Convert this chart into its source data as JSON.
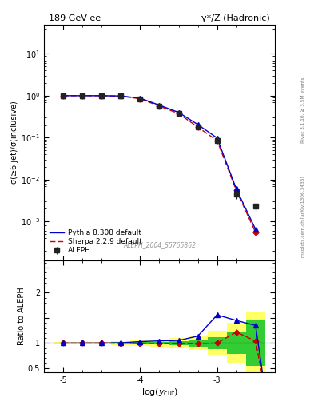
{
  "title_left": "189 GeV ee",
  "title_right": "γ*/Z (Hadronic)",
  "ylabel_main": "σ(≥6 jet)/σ(inclusive)",
  "ylabel_ratio": "Ratio to ALEPH",
  "xlabel": "log(y_{cut})",
  "watermark": "ALEPH_2004_S5765862",
  "right_label_top": "Rivet 3.1.10, ≥ 3.5M events",
  "right_label_bot": "mcplots.cern.ch [arXiv:1306.3436]",
  "xmin": -5.25,
  "xmax": -2.25,
  "aleph_x": [
    -5.0,
    -4.75,
    -4.5,
    -4.25,
    -4.0,
    -3.75,
    -3.5,
    -3.25,
    -3.0,
    -2.75,
    -2.5
  ],
  "aleph_y": [
    1.0,
    1.0,
    1.0,
    0.98,
    0.85,
    0.57,
    0.38,
    0.18,
    0.085,
    0.0045,
    0.0023
  ],
  "aleph_yerr_lo": [
    0.01,
    0.01,
    0.01,
    0.02,
    0.03,
    0.02,
    0.015,
    0.012,
    0.008,
    0.001,
    0.0005
  ],
  "aleph_yerr_hi": [
    0.01,
    0.01,
    0.01,
    0.02,
    0.03,
    0.02,
    0.015,
    0.012,
    0.008,
    0.001,
    0.0005
  ],
  "pythia_x": [
    -5.0,
    -4.75,
    -4.5,
    -4.25,
    -4.0,
    -3.75,
    -3.5,
    -3.25,
    -3.0,
    -2.75,
    -2.5
  ],
  "pythia_y": [
    1.0,
    1.0,
    1.0,
    0.985,
    0.875,
    0.595,
    0.4,
    0.205,
    0.098,
    0.006,
    0.00065
  ],
  "sherpa_x": [
    -5.0,
    -4.75,
    -4.5,
    -4.25,
    -4.0,
    -3.75,
    -3.5,
    -3.25,
    -3.0,
    -2.75,
    -2.5
  ],
  "sherpa_y": [
    1.0,
    1.0,
    1.0,
    0.975,
    0.845,
    0.565,
    0.375,
    0.178,
    0.085,
    0.0055,
    0.00055
  ],
  "ratio_pythia_x": [
    -5.0,
    -4.75,
    -4.5,
    -4.25,
    -4.0,
    -3.75,
    -3.5,
    -3.25,
    -3.0,
    -2.75,
    -2.5,
    -2.4
  ],
  "ratio_pythia_y": [
    1.0,
    1.0,
    1.0,
    1.005,
    1.03,
    1.044,
    1.053,
    1.139,
    1.56,
    1.45,
    1.35,
    0.3
  ],
  "ratio_sherpa_x": [
    -5.0,
    -4.75,
    -4.5,
    -4.25,
    -4.0,
    -3.75,
    -3.5,
    -3.25,
    -3.0,
    -2.75,
    -2.5,
    -2.4
  ],
  "ratio_sherpa_y": [
    1.0,
    1.0,
    1.0,
    0.995,
    0.994,
    0.991,
    0.987,
    0.989,
    1.0,
    1.22,
    1.04,
    0.25
  ],
  "green_x_edges": [
    -5.125,
    -4.875,
    -4.625,
    -4.375,
    -4.125,
    -3.875,
    -3.625,
    -3.375,
    -3.125,
    -2.875,
    -2.625,
    -2.375
  ],
  "green_lo": [
    0.99,
    0.99,
    0.99,
    0.985,
    0.98,
    0.972,
    0.958,
    0.932,
    0.88,
    0.78,
    0.55,
    0.3
  ],
  "green_hi": [
    1.01,
    1.01,
    1.01,
    1.015,
    1.02,
    1.028,
    1.042,
    1.068,
    1.12,
    1.22,
    1.45,
    2.5
  ],
  "yellow_x_edges": [
    -5.125,
    -4.875,
    -4.625,
    -4.375,
    -4.125,
    -3.875,
    -3.625,
    -3.375,
    -3.125,
    -2.875,
    -2.625,
    -2.375
  ],
  "yellow_lo": [
    0.975,
    0.975,
    0.975,
    0.965,
    0.95,
    0.93,
    0.9,
    0.86,
    0.76,
    0.6,
    0.38,
    0.2
  ],
  "yellow_hi": [
    1.025,
    1.025,
    1.025,
    1.035,
    1.05,
    1.07,
    1.1,
    1.14,
    1.24,
    1.4,
    1.62,
    2.7
  ],
  "aleph_color": "#222222",
  "pythia_color": "#0000cc",
  "sherpa_color": "#cc0000",
  "green_color": "#33cc33",
  "yellow_color": "#ffff66"
}
